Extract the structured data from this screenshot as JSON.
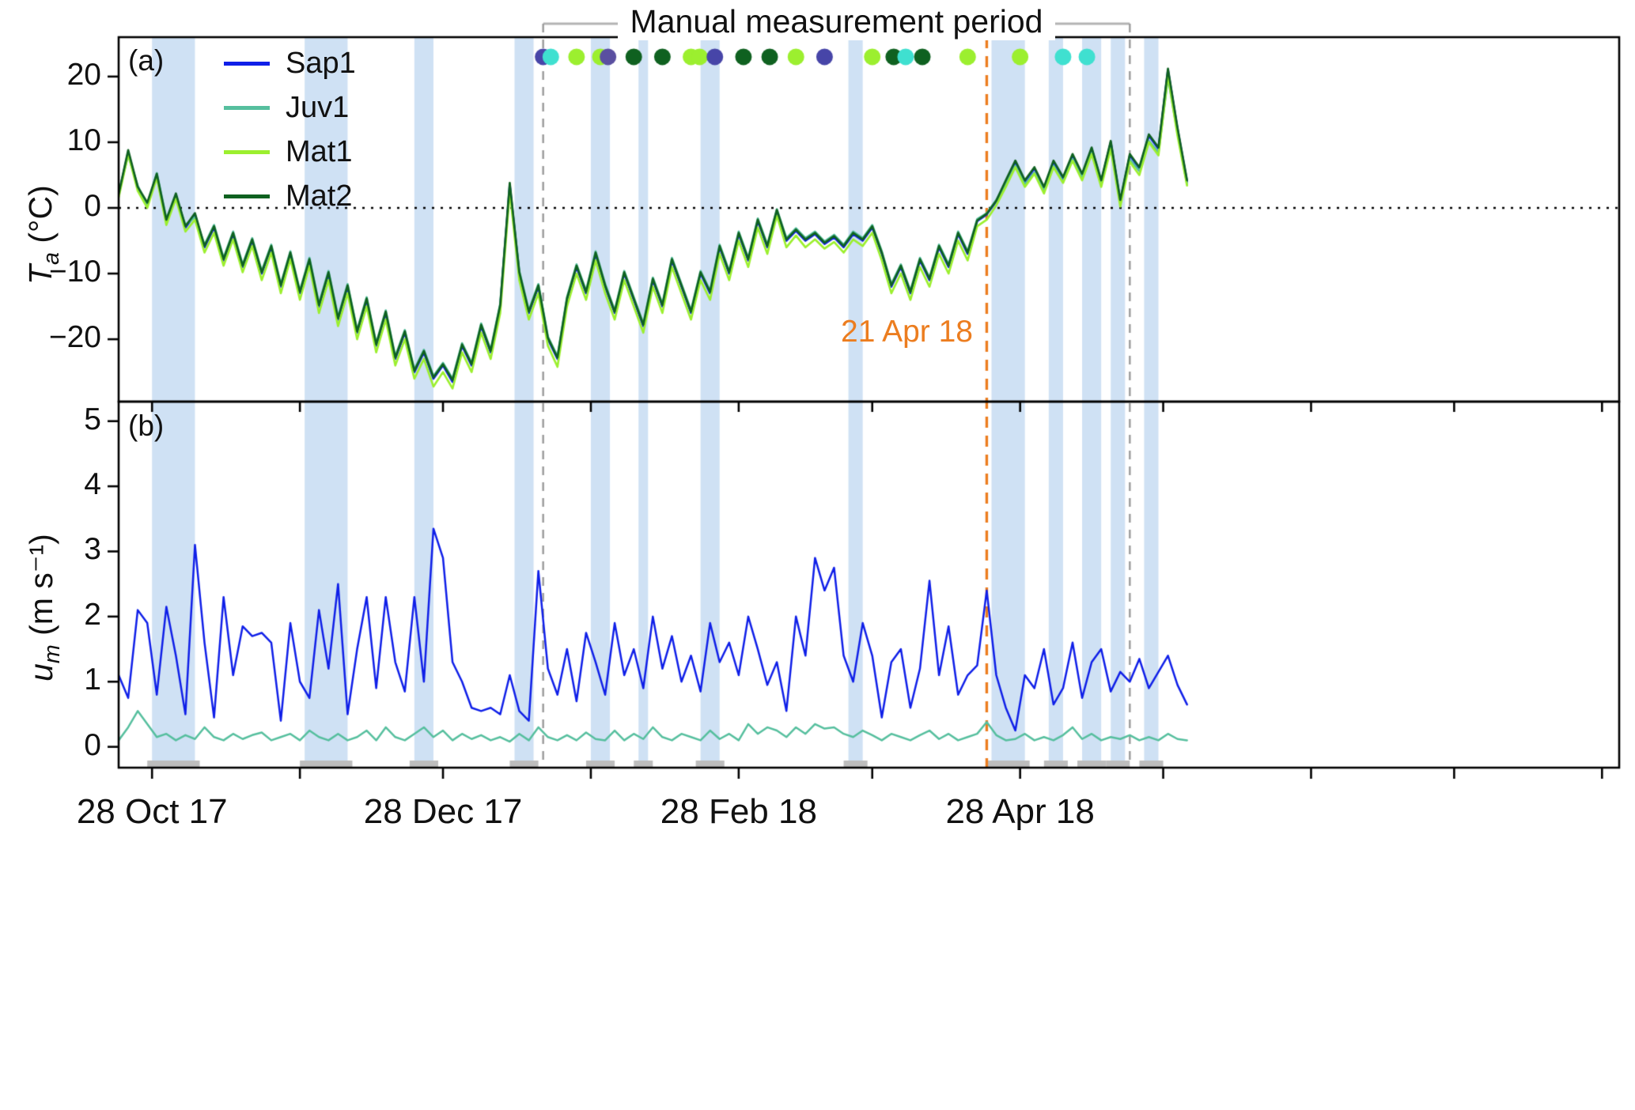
{
  "figure": {
    "title": "Manual measurement period",
    "panel_a_label": "(a)",
    "panel_b_label": "(b)",
    "annotation": {
      "text": "21 Apr 18",
      "day": 182,
      "color": "#ec7d1f"
    },
    "axis_a": {
      "sym": "T",
      "sub": "a",
      "unit": " (°C)"
    },
    "axis_b": {
      "sym": "u",
      "sub": "m",
      "unit": " (m s⁻¹)"
    }
  },
  "colors": {
    "band": "#cfe1f4",
    "band_base": "#bdbdbd",
    "bracket": "#b3b3b3",
    "dashed_gray": "#9a9a9a",
    "zero_line": "#000000",
    "axis": "#000000"
  },
  "chart_data": {
    "type": "line",
    "title": "Manual measurement period",
    "x_axis": {
      "epoch_note": "day 0 = 21 Oct 2017",
      "axis_start_day": 0,
      "axis_end_day": 314.6,
      "ticks": [
        {
          "day": 7,
          "label": "28 Oct 17"
        },
        {
          "day": 38,
          "label": ""
        },
        {
          "day": 68,
          "label": "28 Dec 17"
        },
        {
          "day": 99,
          "label": ""
        },
        {
          "day": 130,
          "label": "28 Feb 18"
        },
        {
          "day": 158,
          "label": ""
        },
        {
          "day": 189,
          "label": "28 Apr 18"
        },
        {
          "day": 219,
          "label": ""
        },
        {
          "day": 250,
          "label": ""
        },
        {
          "day": 280,
          "label": ""
        },
        {
          "day": 311,
          "label": ""
        }
      ]
    },
    "sample_days_start": 0,
    "sample_days_step": 2,
    "manual_period": {
      "start_day": 89,
      "end_day": 212
    },
    "shaded_bands_days": [
      [
        7,
        16
      ],
      [
        39,
        48
      ],
      [
        62,
        66
      ],
      [
        83,
        87
      ],
      [
        99,
        103
      ],
      [
        109,
        111
      ],
      [
        122,
        126
      ],
      [
        153,
        156
      ],
      [
        183,
        190
      ],
      [
        195,
        198
      ],
      [
        202,
        206
      ],
      [
        208,
        211
      ],
      [
        215,
        218
      ]
    ],
    "panel_a": {
      "ylabel": "Ta (°C)",
      "ylim": [
        -29.5,
        26
      ],
      "yticks": [
        {
          "v": 20,
          "label": "20"
        },
        {
          "v": 10,
          "label": "10"
        },
        {
          "v": 0,
          "label": "0"
        },
        {
          "v": -10,
          "label": "−10"
        },
        {
          "v": -20,
          "label": "−20"
        }
      ],
      "zero_reference": 0,
      "dots_y": 23,
      "dots": [
        {
          "day": 89,
          "color": "#4745a8"
        },
        {
          "day": 90.6,
          "color": "#3fe0d0"
        },
        {
          "day": 96,
          "color": "#9cef2f"
        },
        {
          "day": 101,
          "color": "#9cef2f"
        },
        {
          "day": 102.6,
          "color": "#5a4fa0"
        },
        {
          "day": 108,
          "color": "#0f6120"
        },
        {
          "day": 114,
          "color": "#0f6120"
        },
        {
          "day": 120,
          "color": "#9cef2f"
        },
        {
          "day": 121.8,
          "color": "#9cef2f"
        },
        {
          "day": 125,
          "color": "#4745a8"
        },
        {
          "day": 131,
          "color": "#0f6120"
        },
        {
          "day": 136.5,
          "color": "#0f6120"
        },
        {
          "day": 142,
          "color": "#9cef2f"
        },
        {
          "day": 148,
          "color": "#4745a8"
        },
        {
          "day": 158,
          "color": "#9cef2f"
        },
        {
          "day": 162.5,
          "color": "#0f6120"
        },
        {
          "day": 165,
          "color": "#3fe0d0"
        },
        {
          "day": 168.5,
          "color": "#0f6120"
        },
        {
          "day": 178,
          "color": "#9cef2f"
        },
        {
          "day": 189,
          "color": "#9cef2f"
        },
        {
          "day": 198,
          "color": "#3fe0d0"
        },
        {
          "day": 203,
          "color": "#3fe0d0"
        }
      ],
      "series": [
        {
          "name": "Sap1",
          "color": "#0f1fe8",
          "values": [
            2,
            8.5,
            3,
            0.5,
            5,
            -2,
            2,
            -3,
            -1,
            -6,
            -3,
            -8,
            -4,
            -9,
            -5,
            -10,
            -6,
            -12,
            -7,
            -13,
            -8,
            -15,
            -10,
            -17,
            -12,
            -19,
            -14,
            -21,
            -16,
            -23,
            -19,
            -25,
            -22,
            -26,
            -24,
            -26.5,
            -21,
            -24,
            -18,
            -22,
            -15,
            3.5,
            -10,
            -16,
            -12,
            -20,
            -23,
            -14,
            -9,
            -13,
            -7,
            -12,
            -16,
            -10,
            -14,
            -18,
            -11,
            -15,
            -8,
            -12,
            -16,
            -10,
            -13,
            -6,
            -10,
            -4,
            -8,
            -2,
            -6,
            -0.5,
            -5,
            -3.5,
            -5,
            -4,
            -5.5,
            -4.5,
            -6,
            -4,
            -5,
            -3,
            -7,
            -12,
            -9,
            -13,
            -8,
            -11,
            -6,
            -9,
            -4,
            -7,
            -2,
            -1,
            1,
            4,
            7,
            4,
            6,
            3,
            7,
            4.5,
            8,
            5,
            9,
            4,
            10,
            1,
            8,
            6,
            11,
            9,
            21,
            12,
            4
          ]
        },
        {
          "name": "Juv1",
          "color": "#56bf9e",
          "values": [
            2.3,
            8,
            3.4,
            0.2,
            5.3,
            -1.6,
            1.6,
            -2.6,
            -1.4,
            -5.6,
            -2.6,
            -7.6,
            -3.6,
            -8.6,
            -4.6,
            -9.6,
            -5.6,
            -11.6,
            -6.6,
            -12.6,
            -7.6,
            -14.6,
            -9.6,
            -16.6,
            -11.6,
            -18.6,
            -13.6,
            -20.6,
            -15.6,
            -22.6,
            -18.6,
            -24.6,
            -21.6,
            -25.6,
            -23.6,
            -26,
            -20.6,
            -23.6,
            -17.6,
            -21.6,
            -14.6,
            3,
            -9.6,
            -15.6,
            -11.6,
            -19.6,
            -22.6,
            -13.6,
            -8.6,
            -12.6,
            -6.6,
            -11.6,
            -15.6,
            -9.6,
            -13.6,
            -17.6,
            -10.6,
            -14.6,
            -7.6,
            -11.6,
            -15.6,
            -9.6,
            -12.6,
            -5.6,
            -9.6,
            -3.6,
            -7.6,
            -1.6,
            -5.6,
            -0.2,
            -4.6,
            -3.1,
            -4.6,
            -3.6,
            -5.1,
            -4.1,
            -5.6,
            -3.6,
            -4.6,
            -2.6,
            -6.6,
            -11.6,
            -8.6,
            -12.6,
            -7.6,
            -10.6,
            -5.6,
            -8.6,
            -3.6,
            -6.6,
            -1.7,
            -0.8,
            1.2,
            3.6,
            6.4,
            3.6,
            5.4,
            2.6,
            6.4,
            4,
            7.4,
            4.6,
            8.4,
            3.6,
            9.2,
            0.8,
            7.4,
            5.6,
            10.2,
            8.4,
            19.8,
            11.4,
            3.6
          ]
        },
        {
          "name": "Mat1",
          "color": "#9cef2f",
          "values": [
            1.6,
            8.2,
            2.6,
            0,
            4.6,
            -2.6,
            1.4,
            -3.6,
            -1.8,
            -6.8,
            -3.8,
            -8.8,
            -4.8,
            -9.8,
            -5.8,
            -11,
            -6.8,
            -13,
            -7.8,
            -14,
            -8.8,
            -16,
            -11,
            -18,
            -13,
            -20,
            -15,
            -22,
            -17,
            -24,
            -20,
            -26,
            -23,
            -27.2,
            -25,
            -27.5,
            -22,
            -25,
            -19,
            -23,
            -16,
            2.6,
            -11,
            -17,
            -13,
            -21,
            -24.2,
            -15,
            -10,
            -14,
            -8,
            -13,
            -17,
            -11,
            -15,
            -19,
            -12,
            -16,
            -9,
            -13,
            -17,
            -11,
            -14,
            -7,
            -11,
            -5,
            -9,
            -3,
            -7,
            -1.2,
            -6,
            -4.2,
            -6,
            -4.8,
            -6.2,
            -5.2,
            -6.8,
            -4.8,
            -5.8,
            -3.8,
            -8,
            -13,
            -10,
            -14,
            -9,
            -12,
            -7,
            -10,
            -5,
            -8,
            -2.8,
            -1.8,
            0.4,
            3.2,
            6.2,
            3.2,
            5.2,
            2.2,
            6.2,
            3.8,
            7.2,
            4.2,
            8.2,
            3.2,
            9,
            0.2,
            7,
            5,
            10,
            8,
            20.2,
            11,
            3.4
          ]
        },
        {
          "name": "Mat2",
          "color": "#0f6120",
          "values": [
            2.1,
            8.8,
            3.2,
            0.8,
            5.2,
            -1.8,
            2.2,
            -2.8,
            -0.8,
            -5.8,
            -2.8,
            -7.8,
            -3.8,
            -8.8,
            -4.8,
            -9.8,
            -5.8,
            -11.8,
            -6.8,
            -12.8,
            -7.8,
            -14.8,
            -9.8,
            -16.8,
            -11.8,
            -18.8,
            -13.8,
            -20.8,
            -15.8,
            -22.8,
            -18.8,
            -24.8,
            -21.8,
            -25.8,
            -23.8,
            -26.2,
            -20.8,
            -23.8,
            -17.8,
            -21.8,
            -14.8,
            3.8,
            -9.8,
            -15.8,
            -11.8,
            -19.8,
            -22.8,
            -13.8,
            -8.8,
            -12.8,
            -6.8,
            -11.8,
            -15.8,
            -9.8,
            -13.8,
            -17.8,
            -10.8,
            -14.8,
            -7.8,
            -11.8,
            -15.8,
            -9.8,
            -12.8,
            -5.8,
            -9.8,
            -3.8,
            -7.8,
            -1.8,
            -5.8,
            -0.3,
            -4.8,
            -3.3,
            -4.8,
            -3.8,
            -5.3,
            -4.3,
            -5.8,
            -3.8,
            -4.8,
            -2.8,
            -6.8,
            -11.8,
            -8.8,
            -12.8,
            -7.8,
            -10.8,
            -5.8,
            -8.8,
            -3.8,
            -6.8,
            -1.9,
            -0.9,
            1.1,
            4.2,
            7.2,
            4.2,
            6.2,
            3.2,
            7.2,
            4.7,
            8.2,
            5.2,
            9.2,
            4.2,
            10.2,
            1.2,
            8.2,
            6.2,
            11.2,
            9.2,
            21.2,
            12.2,
            4.2
          ]
        }
      ]
    },
    "panel_b": {
      "ylabel": "um (m s⁻¹)",
      "ylim": [
        -0.32,
        5.3
      ],
      "yticks": [
        {
          "v": 5,
          "label": "5"
        },
        {
          "v": 4,
          "label": "4"
        },
        {
          "v": 3,
          "label": "3"
        },
        {
          "v": 2,
          "label": "2"
        },
        {
          "v": 1,
          "label": "1"
        },
        {
          "v": 0,
          "label": "0"
        }
      ],
      "series": [
        {
          "name": "Sap1",
          "color": "#0f1fe8",
          "values": [
            1.1,
            0.75,
            2.1,
            1.9,
            0.8,
            2.15,
            1.4,
            0.5,
            3.1,
            1.6,
            0.45,
            2.3,
            1.1,
            1.85,
            1.7,
            1.75,
            1.6,
            0.4,
            1.9,
            1.0,
            0.75,
            2.1,
            1.2,
            2.5,
            0.5,
            1.5,
            2.3,
            0.9,
            2.3,
            1.3,
            0.85,
            2.3,
            1.0,
            3.35,
            2.9,
            1.3,
            1.0,
            0.6,
            0.55,
            0.6,
            0.5,
            1.1,
            0.55,
            0.4,
            2.7,
            1.2,
            0.8,
            1.5,
            0.7,
            1.75,
            1.3,
            0.8,
            1.9,
            1.1,
            1.5,
            0.9,
            2.0,
            1.2,
            1.7,
            1.0,
            1.4,
            0.85,
            1.9,
            1.3,
            1.6,
            1.1,
            2.0,
            1.5,
            0.95,
            1.3,
            0.55,
            2.0,
            1.4,
            2.9,
            2.4,
            2.75,
            1.4,
            1.0,
            1.9,
            1.4,
            0.45,
            1.3,
            1.5,
            0.6,
            1.2,
            2.55,
            1.1,
            1.85,
            0.8,
            1.1,
            1.25,
            2.4,
            1.1,
            0.6,
            0.25,
            1.1,
            0.9,
            1.5,
            0.65,
            0.9,
            1.6,
            0.75,
            1.3,
            1.5,
            0.85,
            1.15,
            1.0,
            1.35,
            0.9,
            1.15,
            1.4,
            0.95,
            0.65
          ]
        },
        {
          "name": "Juv1",
          "color": "#56bf9e",
          "values": [
            0.1,
            0.3,
            0.55,
            0.35,
            0.15,
            0.2,
            0.1,
            0.18,
            0.12,
            0.3,
            0.15,
            0.1,
            0.2,
            0.12,
            0.18,
            0.22,
            0.1,
            0.15,
            0.2,
            0.1,
            0.25,
            0.15,
            0.1,
            0.2,
            0.1,
            0.15,
            0.25,
            0.1,
            0.3,
            0.15,
            0.1,
            0.2,
            0.3,
            0.15,
            0.25,
            0.1,
            0.2,
            0.12,
            0.18,
            0.1,
            0.15,
            0.08,
            0.2,
            0.1,
            0.3,
            0.15,
            0.1,
            0.18,
            0.1,
            0.22,
            0.12,
            0.1,
            0.25,
            0.1,
            0.2,
            0.12,
            0.3,
            0.15,
            0.1,
            0.2,
            0.15,
            0.1,
            0.25,
            0.12,
            0.2,
            0.1,
            0.35,
            0.2,
            0.3,
            0.25,
            0.15,
            0.3,
            0.2,
            0.35,
            0.28,
            0.3,
            0.2,
            0.15,
            0.25,
            0.18,
            0.1,
            0.2,
            0.15,
            0.1,
            0.18,
            0.25,
            0.12,
            0.2,
            0.1,
            0.15,
            0.2,
            0.38,
            0.18,
            0.1,
            0.12,
            0.2,
            0.1,
            0.15,
            0.1,
            0.18,
            0.3,
            0.12,
            0.2,
            0.1,
            0.15,
            0.12,
            0.18,
            0.1,
            0.15,
            0.1,
            0.2,
            0.12,
            0.1
          ]
        }
      ]
    }
  }
}
